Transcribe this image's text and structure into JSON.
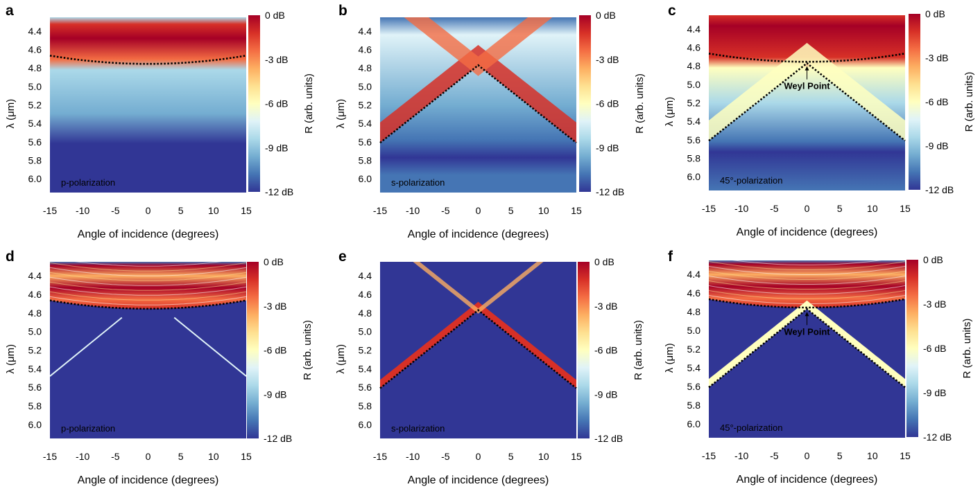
{
  "colors": {
    "colormap": [
      "#313695",
      "#4575b4",
      "#74add1",
      "#abd9e9",
      "#e0f3f8",
      "#ffffbf",
      "#fee090",
      "#fdae61",
      "#f46d43",
      "#d73027",
      "#a50026"
    ],
    "weyl_line": "#000000",
    "polarization_text": "#ffffff"
  },
  "chart_data": [
    {
      "panel": "a",
      "type": "heatmap",
      "polarization_label": "p-polarization",
      "xlabel": "Angle of incidence (degrees)",
      "ylabel": "λ (μm)",
      "xlim": [
        -15,
        15
      ],
      "ylim": [
        4.25,
        6.15
      ],
      "x_ticks": [
        "-15",
        "-10",
        "-5",
        "0",
        "5",
        "10",
        "15"
      ],
      "y_ticks": [
        "4.4",
        "4.6",
        "4.8",
        "5.0",
        "5.2",
        "5.4",
        "5.6",
        "5.8",
        "6.0"
      ],
      "colorbar_label": "R (arb. units)",
      "colorbar_ticks": [
        "0 dB",
        "-3 dB",
        "-6 dB",
        "-9 dB",
        "-12 dB"
      ],
      "dashed_curves": [
        "upper_band_edge"
      ],
      "annotation": null
    },
    {
      "panel": "b",
      "type": "heatmap",
      "polarization_label": "s-polarization",
      "xlabel": "Angle of incidence (degrees)",
      "ylabel": "λ (μm)",
      "xlim": [
        -15,
        15
      ],
      "ylim": [
        4.25,
        6.15
      ],
      "x_ticks": [
        "-15",
        "-10",
        "-5",
        "0",
        "5",
        "10",
        "15"
      ],
      "y_ticks": [
        "4.4",
        "4.6",
        "4.8",
        "5.0",
        "5.2",
        "5.4",
        "5.6",
        "5.8",
        "6.0"
      ],
      "colorbar_label": "R (arb. units)",
      "colorbar_ticks": [
        "0 dB",
        "-3 dB",
        "-6 dB",
        "-9 dB",
        "-12 dB"
      ],
      "dashed_curves": [
        "lower_cone"
      ],
      "annotation": null
    },
    {
      "panel": "c",
      "type": "heatmap",
      "polarization_label": "45°-polarization",
      "xlabel": "Angle of incidence (degrees)",
      "ylabel": "λ (μm)",
      "xlim": [
        -15,
        15
      ],
      "ylim": [
        4.25,
        6.15
      ],
      "x_ticks": [
        "-15",
        "-10",
        "-5",
        "0",
        "5",
        "10",
        "15"
      ],
      "y_ticks": [
        "4.4",
        "4.6",
        "4.8",
        "5.0",
        "5.2",
        "5.4",
        "5.6",
        "5.8",
        "6.0"
      ],
      "colorbar_label": "R (arb. units)",
      "colorbar_ticks": [
        "0 dB",
        "-3 dB",
        "-6 dB",
        "-9 dB",
        "-12 dB"
      ],
      "dashed_curves": [
        "upper_band_edge",
        "lower_cone"
      ],
      "annotation": "Weyl Point"
    },
    {
      "panel": "d",
      "type": "heatmap",
      "polarization_label": "p-polarization",
      "xlabel": "Angle of incidence (degrees)",
      "ylabel": "λ (μm)",
      "xlim": [
        -15,
        15
      ],
      "ylim": [
        4.25,
        6.15
      ],
      "x_ticks": [
        "-15",
        "-10",
        "-5",
        "0",
        "5",
        "10",
        "15"
      ],
      "y_ticks": [
        "4.4",
        "4.6",
        "4.8",
        "5.0",
        "5.2",
        "5.4",
        "5.6",
        "5.8",
        "6.0"
      ],
      "colorbar_label": "R (arb. units)",
      "colorbar_ticks": [
        "0 dB",
        "-3 dB",
        "-6 dB",
        "-9 dB",
        "-12 dB"
      ],
      "dashed_curves": [
        "upper_band_edge"
      ],
      "annotation": null
    },
    {
      "panel": "e",
      "type": "heatmap",
      "polarization_label": "s-polarization",
      "xlabel": "Angle of incidence (degrees)",
      "ylabel": "λ (μm)",
      "xlim": [
        -15,
        15
      ],
      "ylim": [
        4.25,
        6.15
      ],
      "x_ticks": [
        "-15",
        "-10",
        "-5",
        "0",
        "5",
        "10",
        "15"
      ],
      "y_ticks": [
        "4.4",
        "4.6",
        "4.8",
        "5.0",
        "5.2",
        "5.4",
        "5.6",
        "5.8",
        "6.0"
      ],
      "colorbar_label": "R (arb. units)",
      "colorbar_ticks": [
        "0 dB",
        "-3 dB",
        "-6 dB",
        "-9 dB",
        "-12 dB"
      ],
      "dashed_curves": [
        "lower_cone"
      ],
      "annotation": null
    },
    {
      "panel": "f",
      "type": "heatmap",
      "polarization_label": "45°-polarization",
      "xlabel": "Angle of incidence (degrees)",
      "ylabel": "λ (μm)",
      "xlim": [
        -15,
        15
      ],
      "ylim": [
        4.25,
        6.15
      ],
      "x_ticks": [
        "-15",
        "-10",
        "-5",
        "0",
        "5",
        "10",
        "15"
      ],
      "y_ticks": [
        "4.4",
        "4.6",
        "4.8",
        "5.0",
        "5.2",
        "5.4",
        "5.6",
        "5.8",
        "6.0"
      ],
      "colorbar_label": "R (arb. units)",
      "colorbar_ticks": [
        "0 dB",
        "-3 dB",
        "-6 dB",
        "-9 dB",
        "-12 dB"
      ],
      "dashed_curves": [
        "upper_band_edge",
        "lower_cone"
      ],
      "annotation": "Weyl Point"
    }
  ]
}
